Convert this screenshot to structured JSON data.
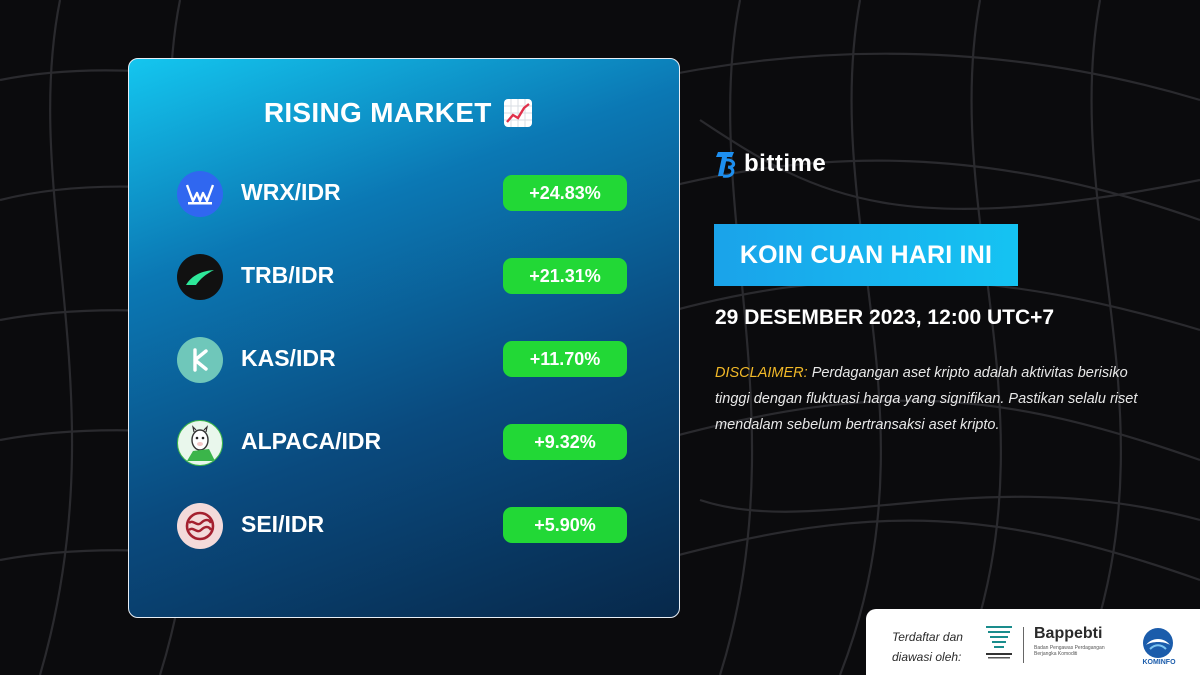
{
  "card": {
    "title": "RISING MARKET",
    "title_emoji": "chart-increasing-icon"
  },
  "coins": [
    {
      "pair": "WRX/IDR",
      "change": "+24.83%",
      "icon": "wazirx-logo-icon",
      "color": "#3067f0"
    },
    {
      "pair": "TRB/IDR",
      "change": "+21.31%",
      "icon": "tellor-logo-icon",
      "color": "#111111"
    },
    {
      "pair": "KAS/IDR",
      "change": "+11.70%",
      "icon": "kaspa-logo-icon",
      "color": "#6fc7ba"
    },
    {
      "pair": "ALPACA/IDR",
      "change": "+9.32%",
      "icon": "alpaca-logo-icon",
      "color": "#e9f7ec"
    },
    {
      "pair": "SEI/IDR",
      "change": "+5.90%",
      "icon": "sei-logo-icon",
      "color": "#f3dada"
    }
  ],
  "brand": {
    "name": "bittime"
  },
  "headline": "KOIN CUAN HARI INI",
  "date": "29 DESEMBER 2023, 12:00 UTC+7",
  "disclaimer": {
    "label": "DISCLAIMER:",
    "text": " Perdagangan aset kripto adalah aktivitas berisiko tinggi dengan fluktuasi harga yang signifikan. Pastikan selalu riset mendalam sebelum bertransaksi aset kripto."
  },
  "footer": {
    "registered_text": "Terdaftar dan diawasi oleh:",
    "bappebti_name": "Bappebti",
    "bappebti_sub": "Badan Pengawas Perdagangan Berjangka Komoditi",
    "kominfo_name": "KOMINFO"
  },
  "colors": {
    "badge_green": "#22d836",
    "headline_blue": "#15c3f2",
    "disclaimer_label": "#f2b928"
  }
}
